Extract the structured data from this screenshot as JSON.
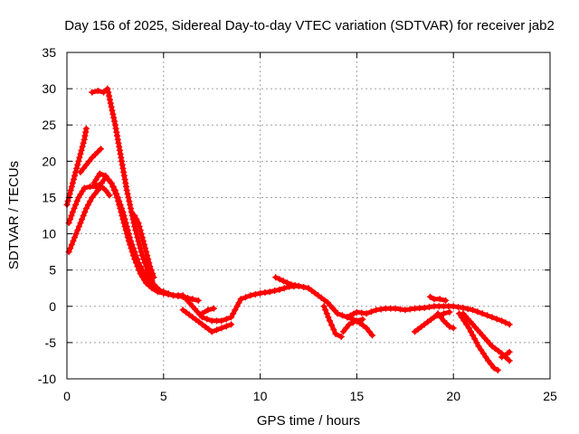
{
  "chart_data": {
    "type": "scatter",
    "title": "Day 156 of 2025, Sidereal Day-to-day VTEC variation (SDTVAR) for receiver jab2",
    "xlabel": "GPS time / hours",
    "ylabel": "SDTVAR / TECUs",
    "xlim": [
      0,
      25
    ],
    "ylim": [
      -10,
      35
    ],
    "xticks": [
      0,
      5,
      10,
      15,
      20,
      25
    ],
    "yticks": [
      -10,
      -5,
      0,
      5,
      10,
      15,
      20,
      25,
      30,
      35
    ],
    "grid": true,
    "marker": "+",
    "color": "#ff0000",
    "series": [
      {
        "name": "trace-1",
        "x": [
          0.0,
          0.3,
          0.6,
          0.9,
          1.0
        ],
        "y": [
          14,
          17,
          20,
          23,
          24.5
        ]
      },
      {
        "name": "trace-2",
        "x": [
          0.7,
          1.0,
          1.3,
          1.6,
          1.75
        ],
        "y": [
          18.5,
          19.5,
          20.5,
          21.3,
          21.7
        ]
      },
      {
        "name": "trace-3",
        "x": [
          1.3,
          1.6,
          1.9,
          2.1,
          2.3,
          2.5,
          2.7,
          2.9,
          3.1,
          3.3,
          3.5,
          3.7,
          3.9,
          4.1,
          4.3,
          4.5,
          4.8,
          5.0,
          5.5,
          6.0,
          6.5,
          6.8
        ],
        "y": [
          29.5,
          29.7,
          29.5,
          30.0,
          27.5,
          25.0,
          22.0,
          19.0,
          16.0,
          13.5,
          11.0,
          9.0,
          7.0,
          5.5,
          4.0,
          3.0,
          2.2,
          1.8,
          1.5,
          1.3,
          1.0,
          0.8
        ]
      },
      {
        "name": "trace-4",
        "x": [
          0.1,
          0.3,
          0.6,
          0.9,
          1.2,
          1.5,
          1.8,
          2.0,
          2.3,
          2.5,
          2.7,
          2.9,
          3.1,
          3.3,
          3.5,
          3.7,
          3.9,
          4.1,
          4.3,
          4.6,
          5.0
        ],
        "y": [
          11.5,
          13.0,
          15.0,
          16.3,
          16.5,
          16.5,
          17.0,
          17.8,
          17.0,
          16.0,
          14.5,
          13.0,
          11.0,
          9.0,
          7.5,
          6.0,
          5.0,
          4.0,
          3.0,
          2.3,
          1.8
        ]
      },
      {
        "name": "trace-5",
        "x": [
          0.1,
          0.4,
          0.7,
          1.0,
          1.3,
          1.6,
          1.8,
          2.0,
          2.2
        ],
        "y": [
          7.5,
          9.5,
          11.5,
          13.5,
          15.0,
          16.0,
          16.5,
          16.0,
          15.3
        ]
      },
      {
        "name": "trace-6",
        "x": [
          1.4,
          1.7,
          2.0,
          2.3,
          2.6,
          2.9,
          3.2,
          3.5,
          3.8,
          4.1,
          4.4,
          4.7,
          5.0
        ],
        "y": [
          17.0,
          18.3,
          18.0,
          17.0,
          15.0,
          12.0,
          9.0,
          6.5,
          4.5,
          3.2,
          2.5,
          2.0,
          1.8
        ]
      },
      {
        "name": "trace-7",
        "x": [
          3.5,
          3.7,
          3.9,
          4.1,
          4.3,
          4.5
        ],
        "y": [
          12.5,
          11.5,
          9.5,
          7.5,
          5.5,
          4.0
        ]
      },
      {
        "name": "trace-8",
        "x": [
          4.5,
          5.0,
          5.5,
          6.0,
          6.5,
          7.0,
          7.5,
          8.0,
          8.5,
          9.0,
          9.5,
          10.0,
          10.5,
          11.0,
          11.5,
          12.0,
          12.5,
          13.0,
          13.5,
          14.0,
          14.5,
          15.0,
          15.5,
          16.0,
          16.5,
          17.0,
          17.5,
          18.0,
          18.5,
          19.0,
          19.5,
          20.0,
          20.5,
          21.0,
          21.5,
          22.0,
          22.5,
          22.9
        ],
        "y": [
          2.5,
          2.0,
          1.5,
          1.5,
          0.0,
          -1.5,
          -2.0,
          -2.0,
          -1.5,
          1.0,
          1.5,
          1.8,
          2.0,
          2.3,
          2.7,
          2.8,
          2.5,
          1.5,
          0.5,
          -1.0,
          -1.5,
          -0.8,
          -1.0,
          -0.5,
          -0.3,
          -0.3,
          -0.5,
          -0.3,
          -0.2,
          0.0,
          0.0,
          0.0,
          -0.2,
          -0.5,
          -1.0,
          -1.5,
          -2.0,
          -2.5
        ]
      },
      {
        "name": "trace-9",
        "x": [
          6.0,
          6.5,
          7.0,
          7.5,
          8.0,
          8.5
        ],
        "y": [
          -0.5,
          -1.5,
          -2.5,
          -3.5,
          -3.0,
          -2.5
        ]
      },
      {
        "name": "trace-10",
        "x": [
          7.0,
          7.3,
          7.6
        ],
        "y": [
          -1.0,
          -0.5,
          -0.3
        ]
      },
      {
        "name": "trace-11",
        "x": [
          10.8,
          11.2,
          11.6,
          12.0
        ],
        "y": [
          4.0,
          3.5,
          3.0,
          2.8
        ]
      },
      {
        "name": "trace-12",
        "x": [
          13.3,
          13.6,
          13.9,
          14.2
        ],
        "y": [
          0.0,
          -2.0,
          -3.8,
          -4.2
        ]
      },
      {
        "name": "trace-13",
        "x": [
          14.3,
          14.6,
          15.0,
          15.3
        ],
        "y": [
          -3.5,
          -2.5,
          -2.0,
          -1.8
        ]
      },
      {
        "name": "trace-14",
        "x": [
          14.5,
          15.0,
          15.5,
          15.8
        ],
        "y": [
          -1.5,
          -2.0,
          -3.0,
          -4.0
        ]
      },
      {
        "name": "trace-15",
        "x": [
          18.0,
          18.5,
          19.0,
          19.5,
          19.8
        ],
        "y": [
          -3.5,
          -2.5,
          -1.5,
          -1.0,
          -0.8
        ]
      },
      {
        "name": "trace-16",
        "x": [
          19.2,
          19.5,
          19.8,
          20.0
        ],
        "y": [
          -1.0,
          -2.0,
          -2.8,
          -3.0
        ]
      },
      {
        "name": "trace-17",
        "x": [
          18.8,
          19.0,
          19.3,
          19.6
        ],
        "y": [
          1.3,
          1.0,
          1.0,
          0.8
        ]
      },
      {
        "name": "trace-18",
        "x": [
          20.3,
          20.8,
          21.3,
          21.8,
          22.1,
          22.3
        ],
        "y": [
          -1.0,
          -3.0,
          -5.5,
          -7.5,
          -8.5,
          -8.8
        ]
      },
      {
        "name": "trace-19",
        "x": [
          20.5,
          21.0,
          21.5,
          22.0,
          22.5,
          22.9
        ],
        "y": [
          -1.0,
          -2.5,
          -4.0,
          -5.5,
          -6.5,
          -7.5
        ]
      },
      {
        "name": "trace-20",
        "x": [
          22.5,
          22.8,
          22.9
        ],
        "y": [
          -7.0,
          -6.5,
          -6.3
        ]
      }
    ]
  }
}
